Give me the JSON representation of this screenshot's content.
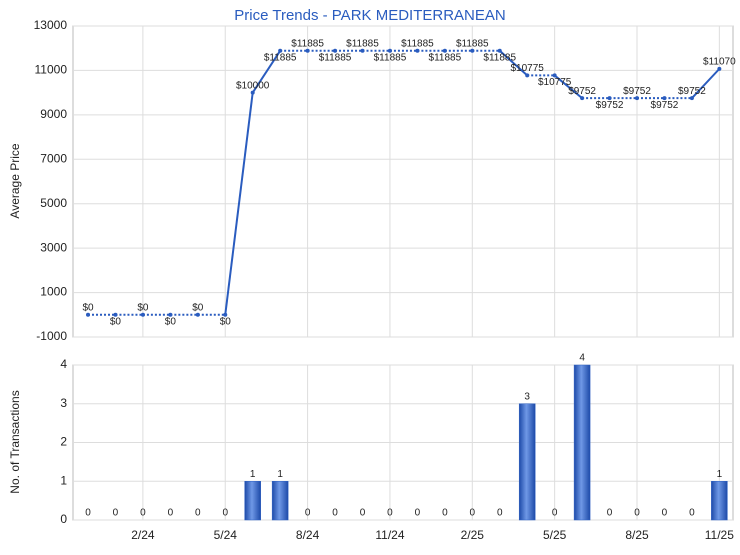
{
  "chart_data": [
    {
      "type": "line",
      "title": "Price Trends - PARK MEDITERRANEAN",
      "y_label": "Average Price",
      "color": "#2a5cbf",
      "values": [
        0,
        0,
        0,
        0,
        0,
        0,
        10000,
        11885,
        11885,
        11885,
        11885,
        11885,
        11885,
        11885,
        11885,
        11885,
        10775,
        10775,
        9752,
        9752,
        9752,
        9752,
        9752,
        11070
      ],
      "value_labels": [
        "$0",
        "$0",
        "$0",
        "$0",
        "$0",
        "$0",
        "$10000",
        "$11885",
        "$11885",
        "$11885",
        "$11885",
        "$11885",
        "$11885",
        "$11885",
        "$11885",
        "$11885",
        "$10775",
        "$10775",
        "$9752",
        "$9752",
        "$9752",
        "$9752",
        "$9752",
        "$11070"
      ],
      "ylim": [
        -1000,
        13000
      ],
      "yticks": [
        -1000,
        1000,
        3000,
        5000,
        7000,
        9000,
        11000,
        13000
      ],
      "grid": true
    },
    {
      "type": "bar",
      "y_label": "No. of Transactions",
      "color": "#2f62c4",
      "categories": [
        null,
        null,
        "2/24",
        null,
        null,
        "5/24",
        null,
        null,
        "8/24",
        null,
        null,
        "11/24",
        null,
        null,
        "2/25",
        null,
        null,
        "5/25",
        null,
        null,
        "8/25",
        null,
        null,
        "11/25"
      ],
      "values": [
        0,
        0,
        0,
        0,
        0,
        0,
        1,
        1,
        0,
        0,
        0,
        0,
        0,
        0,
        0,
        0,
        3,
        0,
        4,
        0,
        0,
        0,
        0,
        1
      ],
      "ylim": [
        0,
        4
      ],
      "yticks": [
        0,
        1,
        2,
        3,
        4
      ],
      "grid": true
    }
  ]
}
